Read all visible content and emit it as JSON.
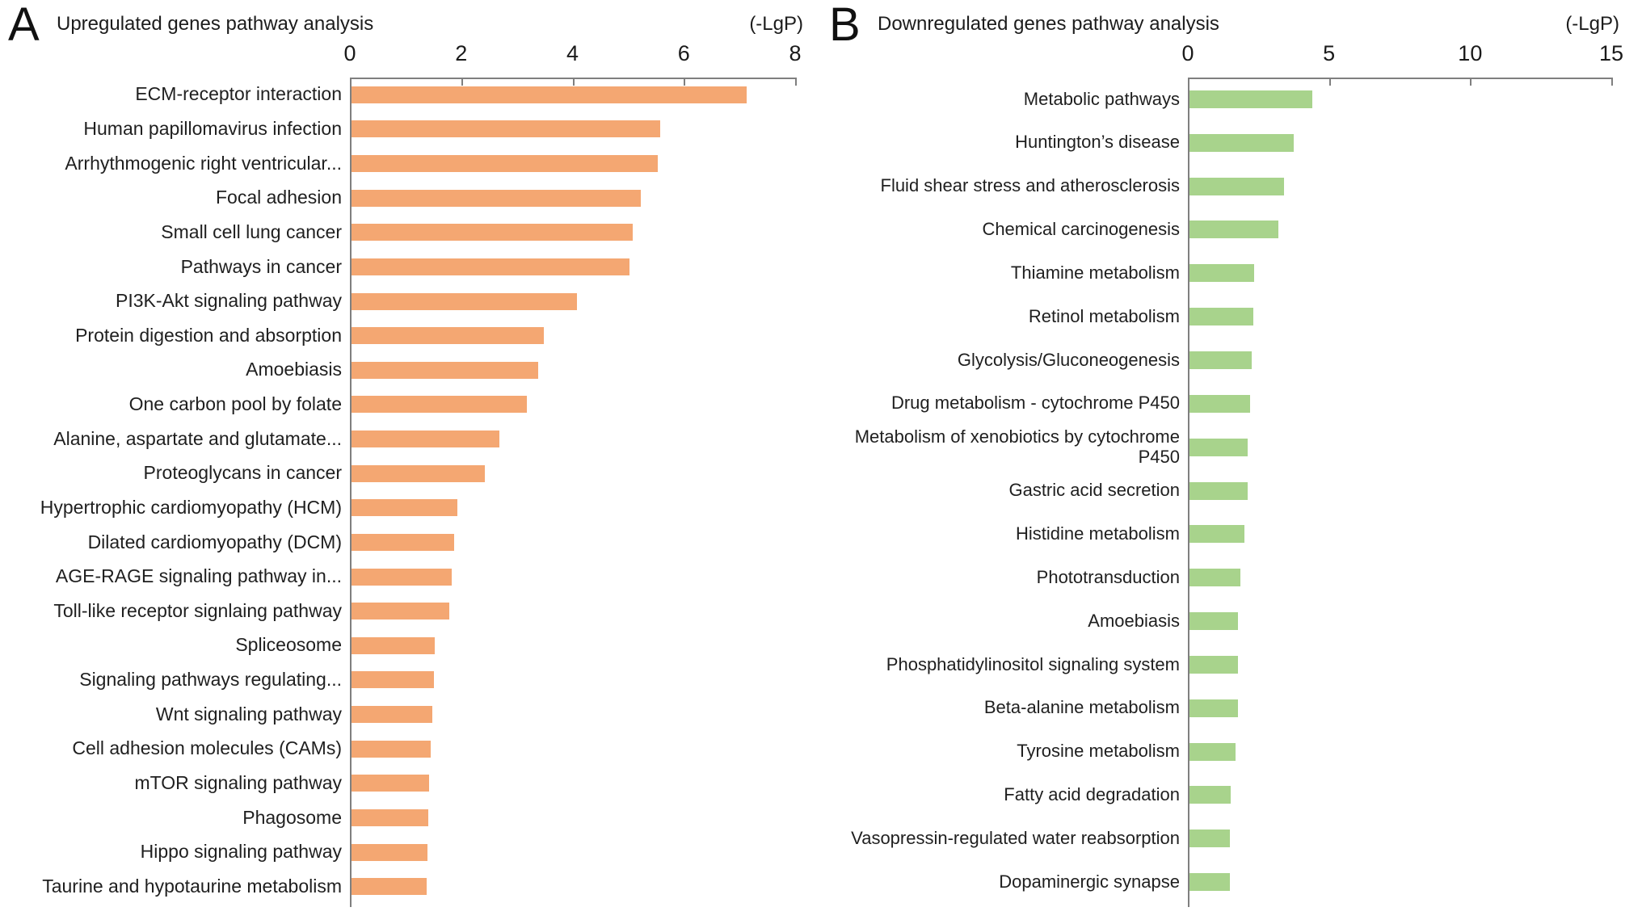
{
  "figure_unit": "(-LgP)",
  "chart_data": [
    {
      "type": "bar",
      "orientation": "horizontal",
      "panel_letter": "A",
      "title": "Upregulated genes pathway analysis",
      "axis_unit": "(-LgP)",
      "xlim": [
        0,
        8
      ],
      "xticks": [
        "0",
        "2",
        "4",
        "6",
        "8"
      ],
      "grid": false,
      "bar_color": "#f4a772",
      "categories": [
        "ECM-receptor interaction",
        "Human papillomavirus infection",
        "Arrhythmogenic right ventricular...",
        "Focal adhesion",
        "Small cell lung cancer",
        "Pathways in cancer",
        "PI3K-Akt signaling pathway",
        "Protein digestion and absorption",
        "Amoebiasis",
        "One carbon pool by folate",
        "Alanine, aspartate and glutamate...",
        "Proteoglycans in cancer",
        "Hypertrophic cardiomyopathy (HCM)",
        "Dilated cardiomyopathy (DCM)",
        "AGE-RAGE signaling pathway in...",
        "Toll-like receptor signlaing pathway",
        "Spliceosome",
        "Signaling pathways regulating...",
        "Wnt signaling pathway",
        "Cell adhesion molecules (CAMs)",
        "mTOR signaling pathway",
        "Phagosome",
        "Hippo signaling pathway",
        "Taurine and hypotaurine metabolism"
      ],
      "values": [
        7.1,
        5.55,
        5.5,
        5.2,
        5.05,
        5.0,
        4.05,
        3.45,
        3.35,
        3.15,
        2.65,
        2.4,
        1.9,
        1.85,
        1.8,
        1.75,
        1.5,
        1.48,
        1.45,
        1.43,
        1.4,
        1.38,
        1.36,
        1.35
      ]
    },
    {
      "type": "bar",
      "orientation": "horizontal",
      "panel_letter": "B",
      "title": "Downregulated genes pathway analysis",
      "axis_unit": "(-LgP)",
      "xlim": [
        0,
        15
      ],
      "xticks": [
        "0",
        "5",
        "10",
        "15"
      ],
      "grid": false,
      "bar_color": "#a8d38c",
      "categories": [
        "Metabolic pathways",
        "Huntington’s disease",
        "Fluid shear stress and atherosclerosis",
        "Chemical carcinogenesis",
        "Thiamine metabolism",
        "Retinol metabolism",
        "Glycolysis/Gluconeogenesis",
        "Drug metabolism - cytochrome P450",
        "Metabolism of xenobiotics by cytochrome P450",
        "Gastric acid secretion",
        "Histidine metabolism",
        "Phototransduction",
        "Amoebiasis",
        "Phosphatidylinositol signaling system",
        "Beta-alanine metabolism",
        "Tyrosine metabolism",
        "Fatty acid degradation",
        "Vasopressin-regulated water reabsorption",
        "Dopaminergic synapse"
      ],
      "values": [
        4.35,
        3.7,
        3.35,
        3.15,
        2.3,
        2.25,
        2.2,
        2.15,
        2.05,
        2.05,
        1.95,
        1.8,
        1.72,
        1.72,
        1.72,
        1.62,
        1.45,
        1.42,
        1.42
      ]
    }
  ]
}
